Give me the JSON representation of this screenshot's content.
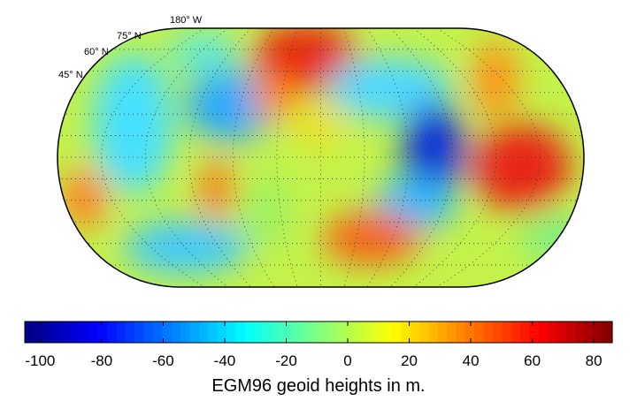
{
  "map": {
    "labels": [
      "180° W",
      "75° N",
      "60° N",
      "45° N"
    ]
  },
  "colorbar": {
    "colormap": "jet",
    "clim": [
      -105,
      86
    ],
    "ticks": [
      -100,
      -80,
      -60,
      -40,
      -20,
      0,
      20,
      40,
      60,
      80
    ],
    "label": "EGM96 geoid heights in m."
  }
}
